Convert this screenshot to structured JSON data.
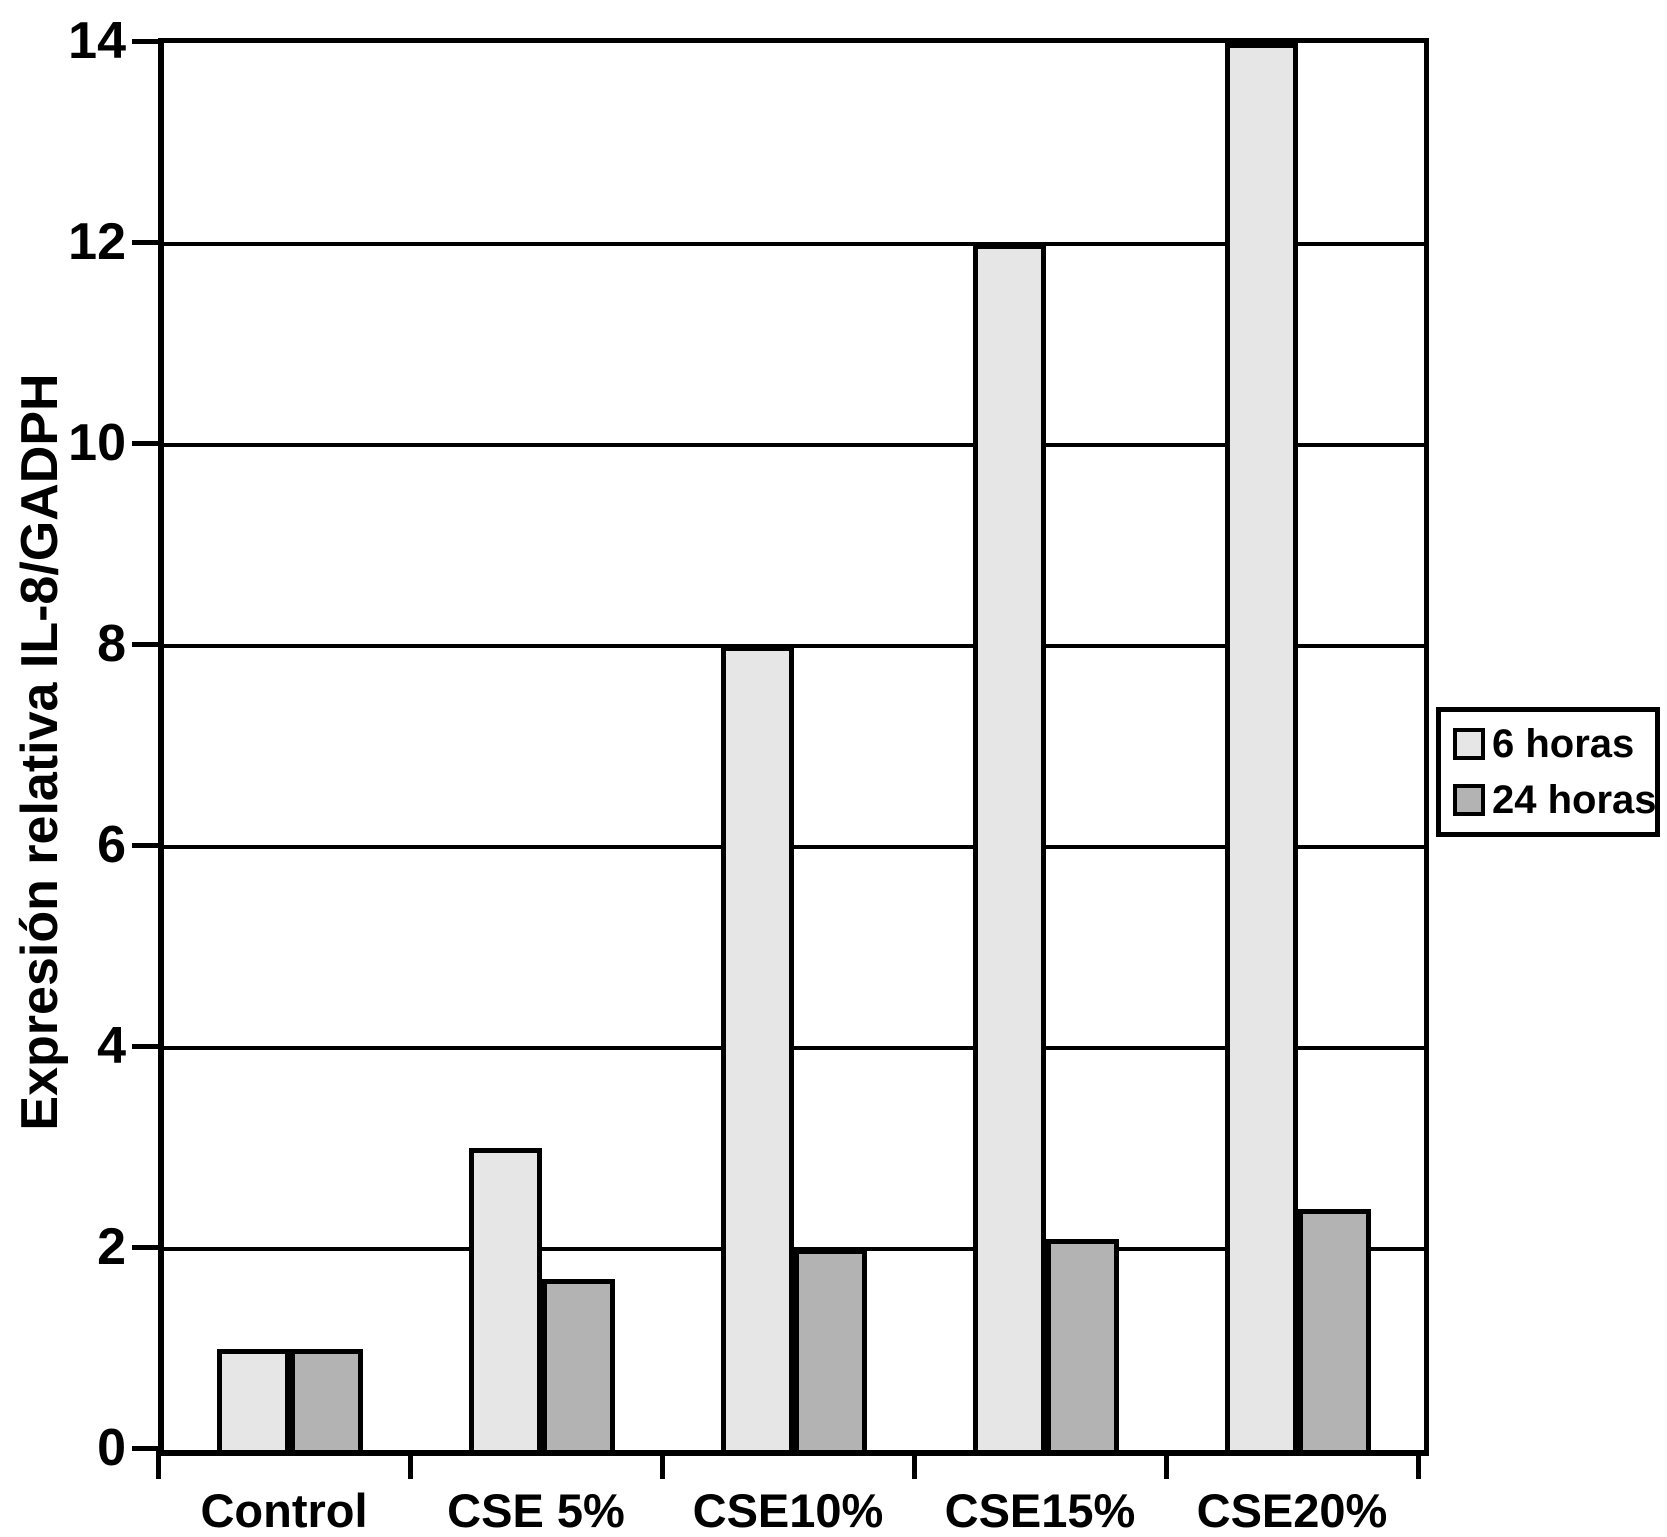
{
  "chart_data": {
    "type": "bar",
    "title": "",
    "categories": [
      "Control",
      "CSE 5%",
      "CSE10%",
      "CSE15%",
      "CSE20%"
    ],
    "series": [
      {
        "name": "6 horas",
        "color": "#e6e6e6",
        "values": [
          1.0,
          3.0,
          8.0,
          12.0,
          14.0
        ]
      },
      {
        "name": "24 horas",
        "color": "#b3b3b3",
        "values": [
          1.0,
          1.7,
          2.0,
          2.1,
          2.4
        ]
      }
    ],
    "xlabel": "",
    "ylabel": "Expresión relativa IL-8/GADPH",
    "ylim": [
      0,
      14
    ],
    "yticks": [
      0,
      2,
      4,
      6,
      8,
      10,
      12,
      14
    ],
    "grid": true,
    "legend_position": "right",
    "bar_border_color": "#000000",
    "axis_color": "#000000",
    "background": "#ffffff"
  }
}
